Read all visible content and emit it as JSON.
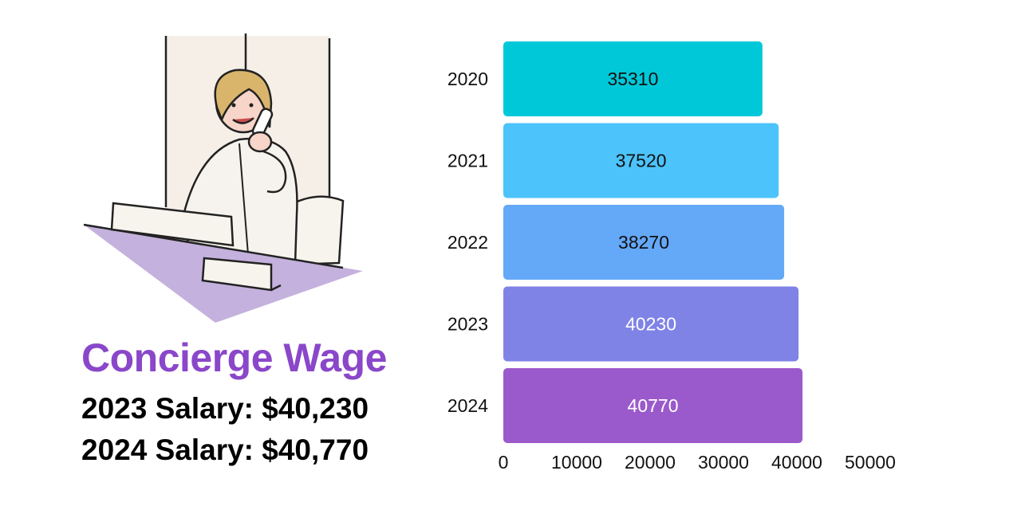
{
  "headline": {
    "title": "Concierge Wage",
    "salary_2023": "2023 Salary: $40,230",
    "salary_2024": "2024 Salary: $40,770"
  },
  "illustration": {
    "icon": "concierge-on-phone-illustration",
    "accent_color": "#c4b1dd"
  },
  "colors": {
    "title": "#8a47c9",
    "text": "#000000"
  },
  "chart_data": {
    "type": "bar",
    "orientation": "horizontal",
    "categories": [
      "2020",
      "2021",
      "2022",
      "2023",
      "2024"
    ],
    "values": [
      35310,
      37520,
      38270,
      40230,
      40770
    ],
    "bar_colors": [
      "#00c8d8",
      "#4cc3fb",
      "#64a8f8",
      "#7f83e6",
      "#9b5acb"
    ],
    "label_colors": [
      "#111111",
      "#111111",
      "#111111",
      "#ffffff",
      "#ffffff"
    ],
    "xlim": [
      0,
      50000
    ],
    "xticks": [
      0,
      10000,
      20000,
      30000,
      40000,
      50000
    ],
    "xlabel": "",
    "ylabel": "",
    "grid": false,
    "legend": "none"
  }
}
